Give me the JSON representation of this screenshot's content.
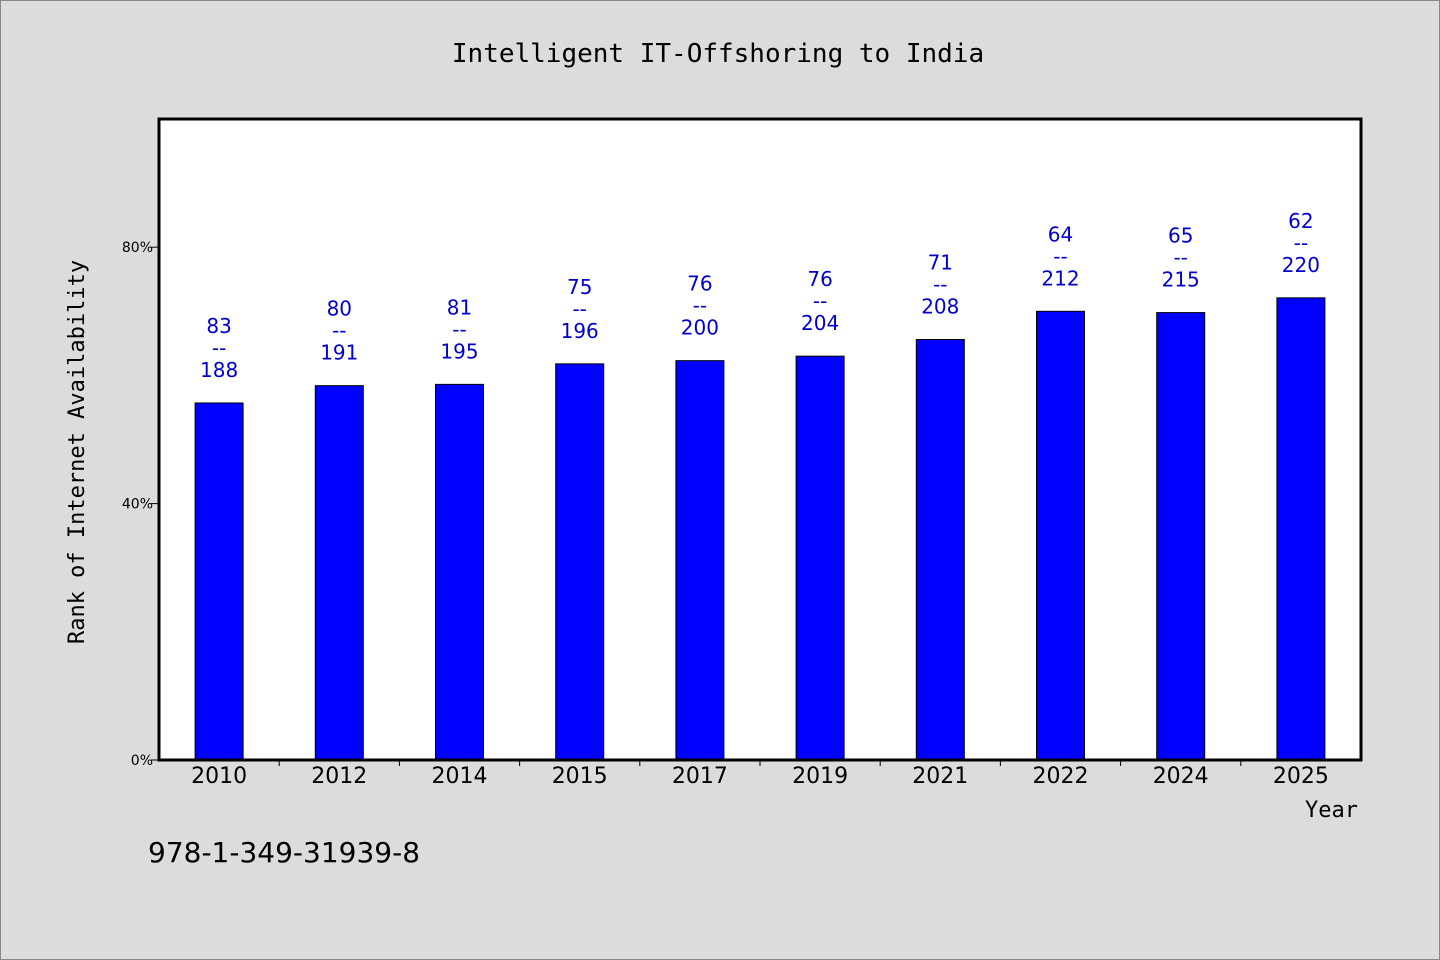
{
  "chart_data": {
    "type": "bar",
    "title": "Intelligent IT-Offshoring to India",
    "xlabel": "Year",
    "ylabel": "Rank of Internet Availability",
    "categories": [
      "2010",
      "2012",
      "2014",
      "2015",
      "2017",
      "2019",
      "2021",
      "2022",
      "2024",
      "2025"
    ],
    "values": [
      55.7,
      58.4,
      58.6,
      61.8,
      62.3,
      63.0,
      65.6,
      70.0,
      69.8,
      72.1
    ],
    "data_labels": [
      {
        "top": "83",
        "sep": "--",
        "bottom": "188"
      },
      {
        "top": "80",
        "sep": "--",
        "bottom": "191"
      },
      {
        "top": "81",
        "sep": "--",
        "bottom": "195"
      },
      {
        "top": "75",
        "sep": "--",
        "bottom": "196"
      },
      {
        "top": "76",
        "sep": "--",
        "bottom": "200"
      },
      {
        "top": "76",
        "sep": "--",
        "bottom": "204"
      },
      {
        "top": "71",
        "sep": "--",
        "bottom": "208"
      },
      {
        "top": "64",
        "sep": "--",
        "bottom": "212"
      },
      {
        "top": "65",
        "sep": "--",
        "bottom": "215"
      },
      {
        "top": "62",
        "sep": "--",
        "bottom": "220"
      }
    ],
    "yticks": [
      {
        "value": 0,
        "label": "0%"
      },
      {
        "value": 40,
        "label": "40%"
      },
      {
        "value": 80,
        "label": "80%"
      }
    ],
    "ylim": [
      0,
      100
    ],
    "grid": false,
    "bar_color": "#0000ff",
    "label_color": "#0000cc",
    "plot_background": "#ffffff",
    "page_background": "#dcdcdc"
  },
  "footer": {
    "isbn": "978-1-349-31939-8"
  }
}
